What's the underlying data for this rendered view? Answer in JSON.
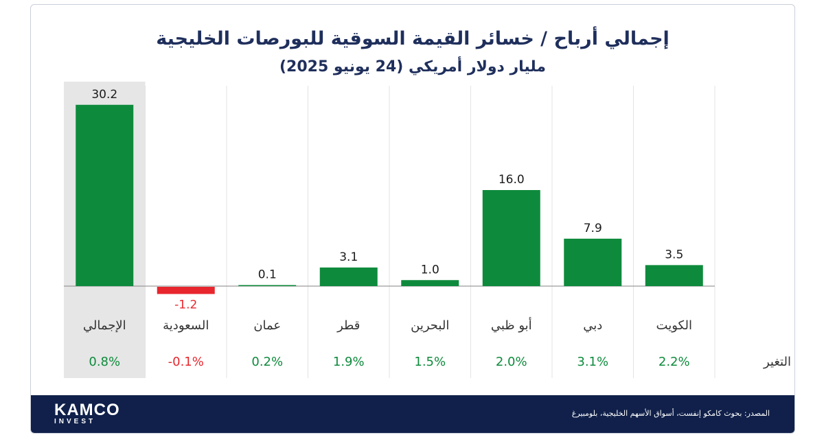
{
  "header": {
    "title": "إجمالي أرباح / خسائر القيمة السوقية للبورصات الخليجية",
    "subtitle": "مليار دولار أمريكي (24 يونيو 2025)"
  },
  "change_row_label": "التغير",
  "colors": {
    "positive": "#0e8a3c",
    "negative": "#e8262d",
    "highlight_band": "#e6e6e6",
    "title": "#1f2f5c",
    "footer": "#10204a"
  },
  "chart_data": {
    "type": "bar",
    "title": "إجمالي أرباح / خسائر القيمة السوقية للبورصات الخليجية",
    "subtitle": "مليار دولار أمريكي (24 يونيو 2025)",
    "categories": [
      "الإجمالي",
      "السعودية",
      "عمان",
      "قطر",
      "البحرين",
      "أبو ظبي",
      "دبي",
      "الكويت"
    ],
    "values": [
      30.2,
      -1.2,
      0.1,
      3.1,
      1.0,
      16.0,
      7.9,
      3.5
    ],
    "value_labels": [
      "30.2",
      "-1.2",
      "0.1",
      "3.1",
      "1.0",
      "16.0",
      "7.9",
      "3.5"
    ],
    "change_pct": [
      "0.8%",
      "-0.1%",
      "0.2%",
      "1.9%",
      "1.5%",
      "2.0%",
      "3.1%",
      "2.2%"
    ],
    "highlighted_category": "الإجمالي",
    "grid": "vertical separators",
    "legend": "none"
  },
  "footer": {
    "logo_main": "KAMCO",
    "logo_sub": "INVEST",
    "source": "المصدر: بحوث كامكو إنفست، أسواق الأسهم الخليجية، بلومبيرغ"
  }
}
